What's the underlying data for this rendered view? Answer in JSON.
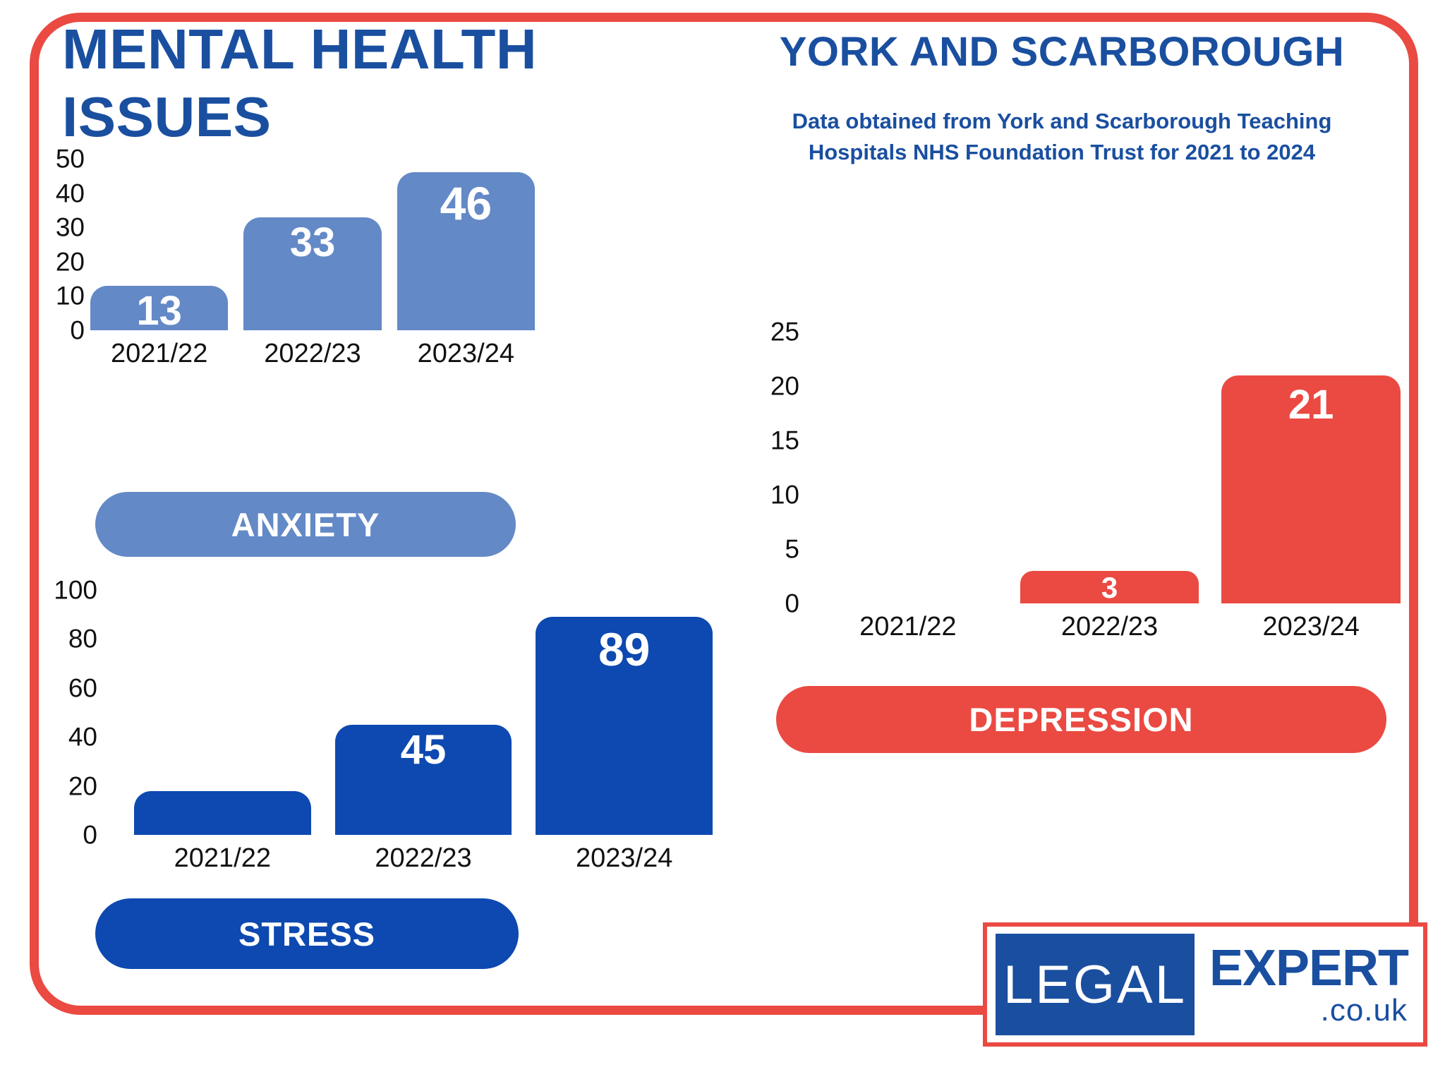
{
  "header": {
    "title_line1": "MENTAL HEALTH",
    "title_line2": "ISSUES",
    "right_title": "YORK AND SCARBOROUGH",
    "subtitle": "Data obtained from York and Scarborough Teaching Hospitals NHS Foundation Trust for 2021 to 2024"
  },
  "colors": {
    "title_blue": "#1A4FA0",
    "anxiety_light_blue": "#6389C6",
    "stress_dark_blue": "#0D49B0",
    "depression_red": "#EA4A42",
    "border_red": "#E94B42",
    "axis_text": "#111111",
    "bar_label_text": "#FFFFFF"
  },
  "chart_data": [
    {
      "type": "bar",
      "id": "anxiety",
      "label": "ANXIETY",
      "categories": [
        "2021/22",
        "2022/23",
        "2023/24"
      ],
      "values": [
        13,
        33,
        46
      ],
      "bar_labels": [
        "13",
        "33",
        "46"
      ],
      "yticks": [
        0,
        10,
        20,
        30,
        40,
        50
      ],
      "ylim": [
        0,
        50
      ],
      "color": "#6389C6",
      "grid": false,
      "legend": "none"
    },
    {
      "type": "bar",
      "id": "stress",
      "label": "STRESS",
      "categories": [
        "2021/22",
        "2022/23",
        "2023/24"
      ],
      "values": [
        18,
        45,
        89
      ],
      "bar_labels": [
        "",
        "45",
        "89"
      ],
      "yticks": [
        0,
        20,
        40,
        60,
        80,
        100
      ],
      "ylim": [
        0,
        100
      ],
      "color": "#0D49B0",
      "grid": false,
      "legend": "none"
    },
    {
      "type": "bar",
      "id": "depression",
      "label": "DEPRESSION",
      "categories": [
        "2021/22",
        "2022/23",
        "2023/24"
      ],
      "values": [
        0,
        3,
        21
      ],
      "bar_labels": [
        "",
        "3",
        "21"
      ],
      "yticks": [
        0,
        5,
        10,
        15,
        20,
        25
      ],
      "ylim": [
        0,
        25
      ],
      "color": "#EA4A42",
      "grid": false,
      "legend": "none"
    }
  ],
  "logo": {
    "legal": "LEGAL",
    "expert": "EXPERT",
    "domain": ".co.uk"
  }
}
